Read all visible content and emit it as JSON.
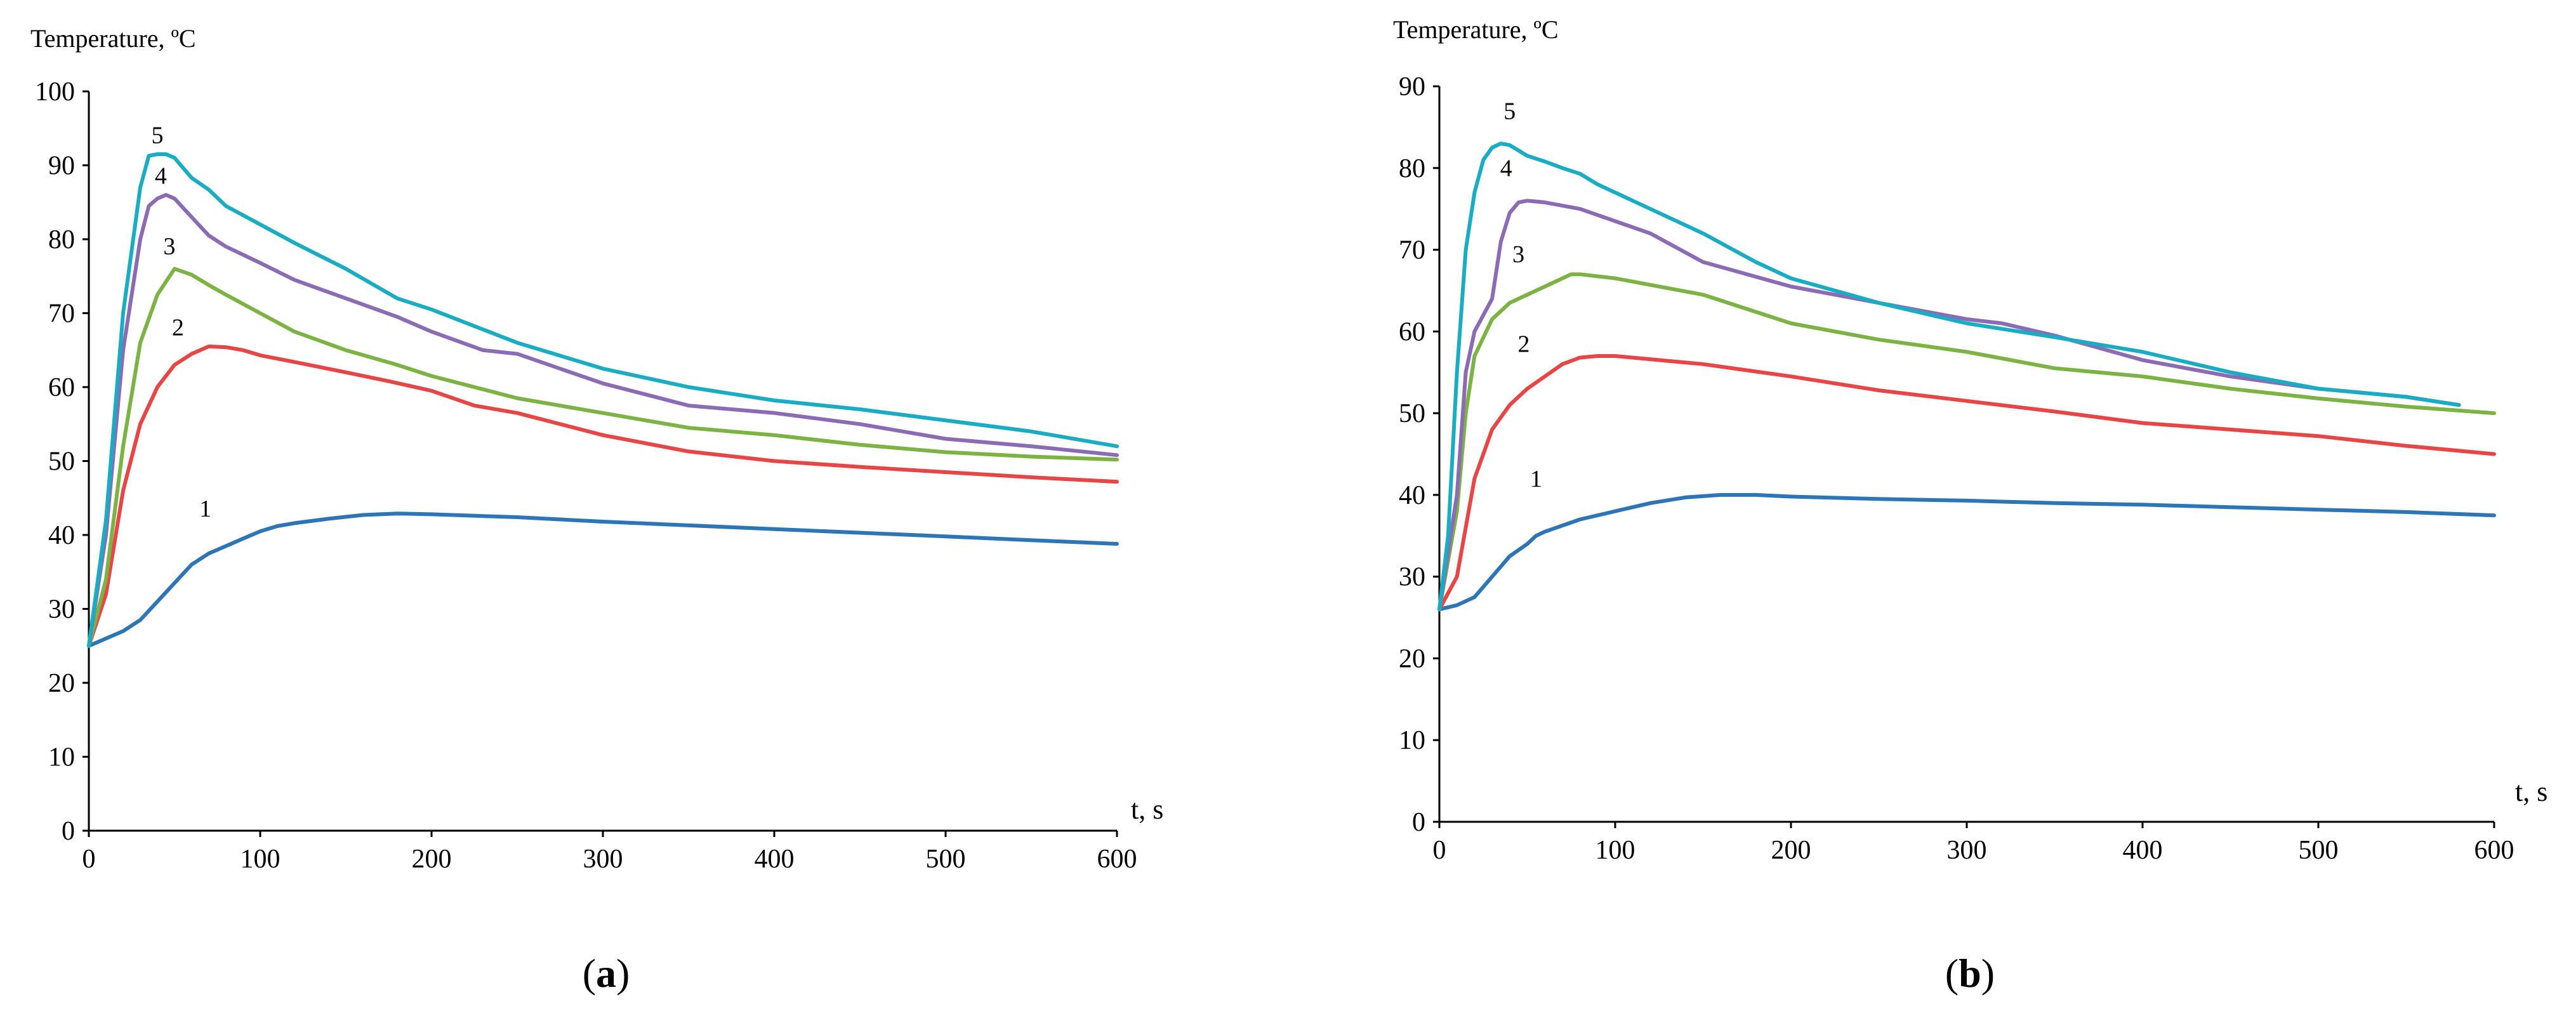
{
  "chart_data": [
    {
      "type": "line",
      "panel": "a",
      "title": "",
      "ylabel": "Temperature, ºC",
      "xlabel": "t, s",
      "xlim": [
        0,
        600
      ],
      "ylim": [
        0,
        100
      ],
      "xticks": [
        0,
        100,
        200,
        300,
        400,
        500,
        600
      ],
      "yticks": [
        0,
        10,
        20,
        30,
        40,
        50,
        60,
        70,
        80,
        90,
        100
      ],
      "grid": false,
      "series": [
        {
          "name": "1",
          "color": "#2e75b6",
          "label_at": [
            68,
            42.5
          ],
          "x": [
            0,
            10,
            20,
            30,
            40,
            50,
            60,
            70,
            80,
            90,
            100,
            110,
            120,
            140,
            160,
            180,
            200,
            250,
            300,
            350,
            400,
            450,
            500,
            550,
            600
          ],
          "y": [
            25,
            26,
            27,
            28.5,
            31,
            33.5,
            36,
            37.5,
            38.5,
            39.5,
            40.5,
            41.2,
            41.6,
            42.2,
            42.7,
            42.9,
            42.8,
            42.4,
            41.8,
            41.3,
            40.8,
            40.3,
            39.8,
            39.3,
            38.8
          ]
        },
        {
          "name": "2",
          "color": "#e64646",
          "label_at": [
            52,
            67
          ],
          "x": [
            0,
            10,
            20,
            30,
            40,
            50,
            60,
            70,
            80,
            90,
            100,
            120,
            150,
            175,
            200,
            225,
            250,
            300,
            350,
            400,
            450,
            500,
            550,
            600
          ],
          "y": [
            25,
            32,
            46,
            55,
            60,
            63,
            64.5,
            65.5,
            65.4,
            65,
            64.3,
            63.4,
            62,
            60.8,
            59.5,
            57.5,
            56.5,
            53.5,
            51.3,
            50,
            49.2,
            48.5,
            47.8,
            47.2
          ]
        },
        {
          "name": "3",
          "color": "#7db244",
          "label_at": [
            47,
            78
          ],
          "x": [
            0,
            10,
            20,
            30,
            40,
            50,
            60,
            70,
            80,
            100,
            120,
            150,
            180,
            200,
            250,
            300,
            350,
            400,
            450,
            500,
            550,
            600
          ],
          "y": [
            25,
            34,
            52,
            66,
            72.5,
            76,
            75.2,
            73.8,
            72.5,
            70,
            67.5,
            65,
            63,
            61.5,
            58.5,
            56.5,
            54.5,
            53.5,
            52.2,
            51.2,
            50.6,
            50.2
          ]
        },
        {
          "name": "4",
          "color": "#8c6bb5",
          "label_at": [
            42,
            87.5
          ],
          "x": [
            0,
            10,
            20,
            30,
            35,
            40,
            45,
            50,
            60,
            70,
            80,
            100,
            120,
            150,
            180,
            200,
            230,
            250,
            300,
            350,
            400,
            450,
            500,
            550,
            600
          ],
          "y": [
            25,
            40,
            65,
            80,
            84.5,
            85.5,
            86,
            85.5,
            83,
            80.5,
            79,
            76.8,
            74.5,
            72,
            69.5,
            67.5,
            65,
            64.5,
            60.5,
            57.5,
            56.5,
            55,
            53,
            52,
            50.8
          ]
        },
        {
          "name": "5",
          "color": "#1aacc3",
          "label_at": [
            40,
            93
          ],
          "x": [
            0,
            10,
            20,
            30,
            35,
            40,
            45,
            50,
            60,
            70,
            80,
            100,
            120,
            150,
            180,
            200,
            250,
            300,
            350,
            400,
            450,
            500,
            550,
            600
          ],
          "y": [
            25,
            42,
            70,
            87,
            91.3,
            91.5,
            91.5,
            91,
            88.3,
            86.7,
            84.5,
            82,
            79.5,
            76,
            72,
            70.5,
            66,
            62.5,
            60,
            58.2,
            57,
            55.5,
            54,
            52
          ]
        }
      ]
    },
    {
      "type": "line",
      "panel": "b",
      "title": "",
      "ylabel": "Temperature, ºC",
      "xlabel": "t, s",
      "xlim": [
        0,
        600
      ],
      "ylim": [
        0,
        90
      ],
      "xticks": [
        0,
        100,
        200,
        300,
        400,
        500,
        600
      ],
      "yticks": [
        0,
        10,
        20,
        30,
        40,
        50,
        60,
        70,
        80,
        90
      ],
      "grid": false,
      "series": [
        {
          "name": "1",
          "color": "#2e75b6",
          "label_at": [
            55,
            41
          ],
          "x": [
            0,
            10,
            20,
            30,
            40,
            50,
            55,
            60,
            80,
            100,
            120,
            140,
            160,
            180,
            200,
            250,
            300,
            350,
            400,
            450,
            500,
            550,
            600
          ],
          "y": [
            26,
            26.5,
            27.5,
            30,
            32.5,
            34,
            35,
            35.5,
            37,
            38,
            39,
            39.7,
            40,
            40,
            39.8,
            39.5,
            39.3,
            39,
            38.8,
            38.5,
            38.2,
            37.9,
            37.5
          ]
        },
        {
          "name": "2",
          "color": "#e64646",
          "label_at": [
            48,
            57.5
          ],
          "x": [
            0,
            10,
            20,
            30,
            40,
            50,
            60,
            70,
            80,
            90,
            100,
            150,
            200,
            250,
            300,
            350,
            400,
            450,
            500,
            550,
            600
          ],
          "y": [
            26,
            30,
            42,
            48,
            51,
            53,
            54.5,
            56,
            56.8,
            57,
            57,
            56,
            54.5,
            52.8,
            51.5,
            50.2,
            48.8,
            48,
            47.2,
            46,
            45
          ]
        },
        {
          "name": "3",
          "color": "#7db244",
          "label_at": [
            45,
            68.5
          ],
          "x": [
            0,
            10,
            15,
            20,
            30,
            40,
            50,
            60,
            70,
            75,
            80,
            100,
            150,
            200,
            250,
            300,
            350,
            400,
            450,
            500,
            550,
            600
          ],
          "y": [
            26,
            38,
            50,
            57,
            61.5,
            63.5,
            64.5,
            65.5,
            66.5,
            67,
            67,
            66.5,
            64.5,
            61,
            59,
            57.5,
            55.5,
            54.5,
            53,
            51.8,
            50.8,
            50
          ]
        },
        {
          "name": "4",
          "color": "#8c6bb5",
          "label_at": [
            38,
            79
          ],
          "x": [
            0,
            10,
            15,
            20,
            25,
            30,
            35,
            40,
            45,
            50,
            60,
            80,
            100,
            120,
            150,
            200,
            250,
            300,
            320,
            350,
            400,
            450,
            500,
            550,
            580
          ],
          "y": [
            26,
            40,
            55,
            60,
            62,
            64,
            71,
            74.5,
            75.8,
            76,
            75.8,
            75,
            73.5,
            72,
            68.5,
            65.5,
            63.5,
            61.5,
            61,
            59.5,
            56.5,
            54.5,
            53,
            52,
            51
          ]
        },
        {
          "name": "5",
          "color": "#1aacc3",
          "label_at": [
            40,
            86
          ],
          "x": [
            0,
            5,
            10,
            15,
            20,
            25,
            30,
            35,
            40,
            50,
            60,
            70,
            80,
            90,
            100,
            120,
            150,
            180,
            200,
            250,
            300,
            350,
            400,
            450,
            500,
            550,
            580
          ],
          "y": [
            26,
            35,
            55,
            70,
            77,
            81,
            82.5,
            83,
            82.8,
            81.5,
            80.8,
            80,
            79.3,
            78,
            77,
            75,
            72,
            68.5,
            66.5,
            63.5,
            61,
            59.3,
            57.5,
            55,
            53,
            52,
            51
          ]
        }
      ]
    }
  ],
  "panel_labels": {
    "a": {
      "open": "(",
      "letter": "a",
      "close": ")"
    },
    "b": {
      "open": "(",
      "letter": "b",
      "close": ")"
    }
  }
}
